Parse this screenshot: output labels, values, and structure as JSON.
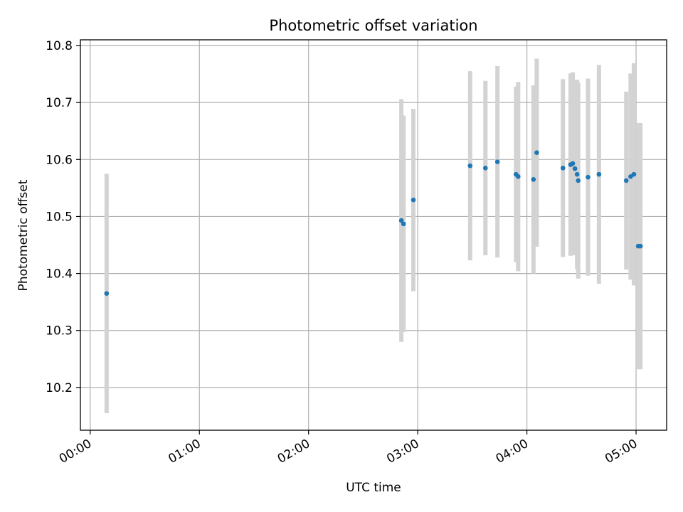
{
  "chart_data": {
    "type": "scatter",
    "title": "Photometric offset variation",
    "xlabel": "UTC time",
    "ylabel": "Photometric offset",
    "x_unit": "hours",
    "xlim": [
      -0.09,
      5.28
    ],
    "ylim": [
      10.125,
      10.81
    ],
    "grid": true,
    "xticks": [
      {
        "value": 0,
        "label": "00:00"
      },
      {
        "value": 1,
        "label": "01:00"
      },
      {
        "value": 2,
        "label": "02:00"
      },
      {
        "value": 3,
        "label": "03:00"
      },
      {
        "value": 4,
        "label": "04:00"
      },
      {
        "value": 5,
        "label": "05:00"
      }
    ],
    "yticks": [
      {
        "value": 10.2,
        "label": "10.2"
      },
      {
        "value": 10.3,
        "label": "10.3"
      },
      {
        "value": 10.4,
        "label": "10.4"
      },
      {
        "value": 10.5,
        "label": "10.5"
      },
      {
        "value": 10.6,
        "label": "10.6"
      },
      {
        "value": 10.7,
        "label": "10.7"
      },
      {
        "value": 10.8,
        "label": "10.8"
      }
    ],
    "point_color": "#1f77b4",
    "errorbar_color": "#d3d3d3",
    "points": [
      {
        "x": 0.15,
        "y": 10.365,
        "err": 0.21
      },
      {
        "x": 2.85,
        "y": 10.493,
        "err": 0.213
      },
      {
        "x": 2.87,
        "y": 10.487,
        "err": 0.19
      },
      {
        "x": 2.96,
        "y": 10.529,
        "err": 0.16
      },
      {
        "x": 3.48,
        "y": 10.589,
        "err": 0.166
      },
      {
        "x": 3.62,
        "y": 10.585,
        "err": 0.153
      },
      {
        "x": 3.73,
        "y": 10.596,
        "err": 0.168
      },
      {
        "x": 3.9,
        "y": 10.574,
        "err": 0.154
      },
      {
        "x": 3.92,
        "y": 10.57,
        "err": 0.166
      },
      {
        "x": 4.06,
        "y": 10.565,
        "err": 0.165
      },
      {
        "x": 4.09,
        "y": 10.612,
        "err": 0.165
      },
      {
        "x": 4.33,
        "y": 10.585,
        "err": 0.156
      },
      {
        "x": 4.4,
        "y": 10.591,
        "err": 0.16
      },
      {
        "x": 4.42,
        "y": 10.593,
        "err": 0.16
      },
      {
        "x": 4.44,
        "y": 10.584,
        "err": 0.152
      },
      {
        "x": 4.46,
        "y": 10.574,
        "err": 0.166
      },
      {
        "x": 4.47,
        "y": 10.563,
        "err": 0.172
      },
      {
        "x": 4.56,
        "y": 10.569,
        "err": 0.173
      },
      {
        "x": 4.66,
        "y": 10.574,
        "err": 0.192
      },
      {
        "x": 4.91,
        "y": 10.563,
        "err": 0.156
      },
      {
        "x": 4.95,
        "y": 10.57,
        "err": 0.181
      },
      {
        "x": 4.98,
        "y": 10.574,
        "err": 0.195
      },
      {
        "x": 5.02,
        "y": 10.448,
        "err": 0.216
      },
      {
        "x": 5.04,
        "y": 10.448,
        "err": 0.216
      }
    ]
  }
}
